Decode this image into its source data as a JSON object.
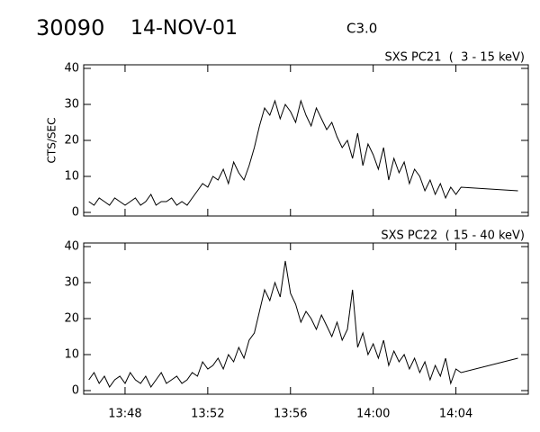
{
  "header": {
    "id": "30090",
    "date": "14-NOV-01",
    "class": "C3.0"
  },
  "chart_data": [
    {
      "type": "line",
      "title": "SXS PC21  (  3 - 15 keV)",
      "ylabel": "CTS/SEC",
      "x": [
        826.25,
        826.5,
        826.75,
        827,
        827.25,
        827.5,
        827.75,
        828,
        828.25,
        828.5,
        828.75,
        829,
        829.25,
        829.5,
        829.75,
        830,
        830.25,
        830.5,
        830.75,
        831,
        831.25,
        831.5,
        831.75,
        832,
        832.25,
        832.5,
        832.75,
        833,
        833.25,
        833.5,
        833.75,
        834,
        834.25,
        834.5,
        834.75,
        835,
        835.25,
        835.5,
        835.75,
        836,
        836.25,
        836.5,
        836.75,
        837,
        837.25,
        837.5,
        837.75,
        838,
        838.25,
        838.5,
        838.75,
        839,
        839.25,
        839.5,
        839.75,
        840,
        840.25,
        840.5,
        840.75,
        841,
        841.25,
        841.5,
        841.75,
        842,
        842.25,
        842.5,
        842.75,
        843,
        843.25,
        843.5,
        843.75,
        844,
        844.25,
        847
      ],
      "series": [
        {
          "color": "#000000",
          "values": [
            3,
            2,
            4,
            3,
            2,
            4,
            3,
            2,
            3,
            4,
            2,
            3,
            5,
            2,
            3,
            3,
            4,
            2,
            3,
            2,
            4,
            6,
            8,
            7,
            10,
            9,
            12,
            8,
            14,
            11,
            9,
            13,
            18,
            24,
            29,
            27,
            31,
            26,
            30,
            28,
            25,
            31,
            27,
            24,
            29,
            26,
            23,
            25,
            21,
            18,
            20,
            15,
            22,
            13,
            19,
            16,
            12,
            18,
            9,
            15,
            11,
            14,
            8,
            12,
            10,
            6,
            9,
            5,
            8,
            4,
            7,
            5,
            7,
            6
          ]
        }
      ],
      "xlim": [
        826,
        847.5
      ],
      "ylim": [
        -1,
        41
      ],
      "xticks": [
        {
          "value": 828,
          "label": "13:48"
        },
        {
          "value": 832,
          "label": "13:52"
        },
        {
          "value": 836,
          "label": "13:56"
        },
        {
          "value": 840,
          "label": "14:00"
        },
        {
          "value": 844,
          "label": "14:04"
        }
      ],
      "yticks": [
        0,
        10,
        20,
        30,
        40
      ]
    },
    {
      "type": "line",
      "title": "SXS PC22  ( 15 - 40 keV)",
      "x": [
        826.25,
        826.5,
        826.75,
        827,
        827.25,
        827.5,
        827.75,
        828,
        828.25,
        828.5,
        828.75,
        829,
        829.25,
        829.5,
        829.75,
        830,
        830.25,
        830.5,
        830.75,
        831,
        831.25,
        831.5,
        831.75,
        832,
        832.25,
        832.5,
        832.75,
        833,
        833.25,
        833.5,
        833.75,
        834,
        834.25,
        834.5,
        834.75,
        835,
        835.25,
        835.5,
        835.75,
        836,
        836.25,
        836.5,
        836.75,
        837,
        837.25,
        837.5,
        837.75,
        838,
        838.25,
        838.5,
        838.75,
        839,
        839.25,
        839.5,
        839.75,
        840,
        840.25,
        840.5,
        840.75,
        841,
        841.25,
        841.5,
        841.75,
        842,
        842.25,
        842.5,
        842.75,
        843,
        843.25,
        843.5,
        843.75,
        844,
        844.25,
        847
      ],
      "series": [
        {
          "color": "#000000",
          "values": [
            3,
            5,
            2,
            4,
            1,
            3,
            4,
            2,
            5,
            3,
            2,
            4,
            1,
            3,
            5,
            2,
            3,
            4,
            2,
            3,
            5,
            4,
            8,
            6,
            7,
            9,
            6,
            10,
            8,
            12,
            9,
            14,
            16,
            22,
            28,
            25,
            30,
            26,
            36,
            27,
            24,
            19,
            22,
            20,
            17,
            21,
            18,
            15,
            19,
            14,
            17,
            28,
            12,
            16,
            10,
            13,
            9,
            14,
            7,
            11,
            8,
            10,
            6,
            9,
            5,
            8,
            3,
            7,
            4,
            9,
            2,
            6,
            5,
            9
          ]
        }
      ],
      "xlim": [
        826,
        847.5
      ],
      "ylim": [
        -1,
        41
      ],
      "xticks": [
        {
          "value": 828,
          "label": "13:48"
        },
        {
          "value": 832,
          "label": "13:52"
        },
        {
          "value": 836,
          "label": "13:56"
        },
        {
          "value": 840,
          "label": "14:00"
        },
        {
          "value": 844,
          "label": "14:04"
        }
      ],
      "yticks": [
        0,
        10,
        20,
        30,
        40
      ]
    }
  ]
}
